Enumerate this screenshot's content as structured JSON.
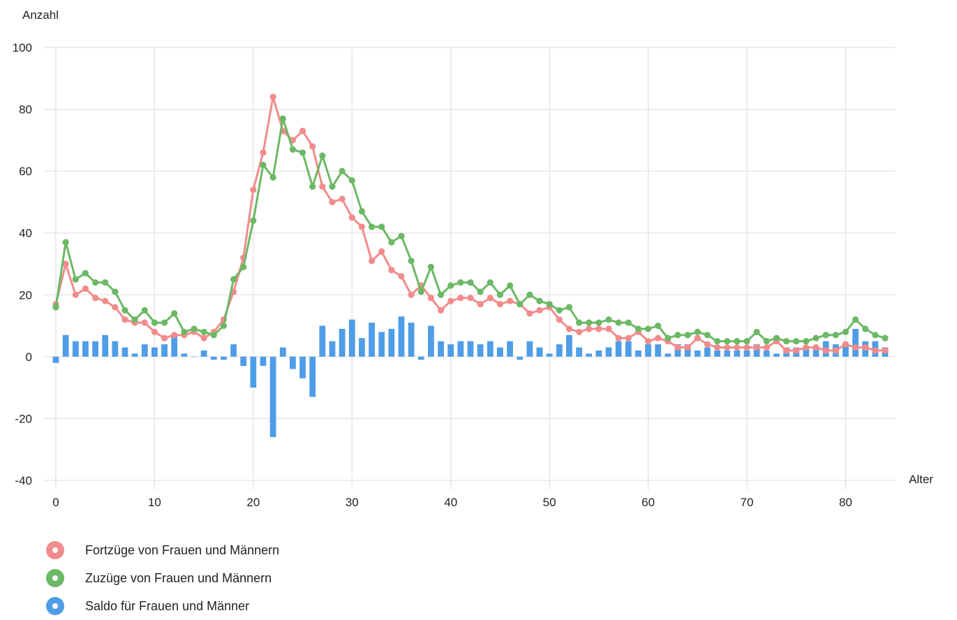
{
  "chart_data": {
    "type": "line",
    "ylabel": "Anzahl",
    "xlabel": "Alter",
    "xlim": [
      0,
      84
    ],
    "ylim": [
      -40,
      100
    ],
    "x_ticks": [
      0,
      10,
      20,
      30,
      40,
      50,
      60,
      70,
      80
    ],
    "y_ticks": [
      -40,
      -20,
      0,
      20,
      40,
      60,
      80,
      100
    ],
    "grid": true,
    "legend_position": "bottom-left",
    "x": [
      0,
      1,
      2,
      3,
      4,
      5,
      6,
      7,
      8,
      9,
      10,
      11,
      12,
      13,
      14,
      15,
      16,
      17,
      18,
      19,
      20,
      21,
      22,
      23,
      24,
      25,
      26,
      27,
      28,
      29,
      30,
      31,
      32,
      33,
      34,
      35,
      36,
      37,
      38,
      39,
      40,
      41,
      42,
      43,
      44,
      45,
      46,
      47,
      48,
      49,
      50,
      51,
      52,
      53,
      54,
      55,
      56,
      57,
      58,
      59,
      60,
      61,
      62,
      63,
      64,
      65,
      66,
      67,
      68,
      69,
      70,
      71,
      72,
      73,
      74,
      75,
      76,
      77,
      78,
      79,
      80,
      81,
      82,
      83,
      84
    ],
    "series": [
      {
        "name": "Fortzüge von Frauen und Männern",
        "type": "line",
        "color": "#f28b8b",
        "values": [
          17,
          30,
          20,
          22,
          19,
          18,
          16,
          12,
          11,
          11,
          8,
          6,
          7,
          7,
          8,
          6,
          8,
          12,
          21,
          32,
          54,
          66,
          84,
          73,
          70,
          73,
          68,
          55,
          50,
          51,
          45,
          42,
          31,
          34,
          28,
          26,
          20,
          23,
          19,
          15,
          18,
          19,
          19,
          17,
          19,
          17,
          18,
          17,
          14,
          15,
          16,
          12,
          9,
          8,
          9,
          9,
          9,
          6,
          6,
          8,
          5,
          6,
          5,
          3,
          3,
          6,
          4,
          3,
          3,
          3,
          3,
          3,
          3,
          5,
          2,
          2,
          3,
          3,
          2,
          2,
          4,
          3,
          3,
          2,
          2
        ]
      },
      {
        "name": "Zuzüge von Frauen und Männern",
        "type": "line",
        "color": "#6bb865",
        "values": [
          16,
          37,
          25,
          27,
          24,
          24,
          21,
          15,
          12,
          15,
          11,
          11,
          14,
          8,
          9,
          8,
          7,
          10,
          25,
          29,
          44,
          62,
          58,
          77,
          67,
          66,
          55,
          65,
          55,
          60,
          57,
          47,
          42,
          42,
          37,
          39,
          31,
          21,
          29,
          20,
          23,
          24,
          24,
          21,
          24,
          20,
          23,
          17,
          20,
          18,
          17,
          15,
          16,
          11,
          11,
          11,
          12,
          11,
          11,
          9,
          9,
          10,
          6,
          7,
          7,
          8,
          7,
          5,
          5,
          5,
          5,
          8,
          5,
          6,
          5,
          5,
          5,
          6,
          7,
          7,
          8,
          12,
          9,
          7,
          6
        ]
      },
      {
        "name": "Saldo für Frauen und Männer",
        "type": "bar",
        "color": "#4e9de6",
        "values": [
          -2,
          7,
          5,
          5,
          5,
          7,
          5,
          3,
          1,
          4,
          3,
          4,
          7,
          1,
          0,
          2,
          -1,
          -1,
          4,
          -3,
          -10,
          -3,
          -26,
          3,
          -4,
          -7,
          -13,
          10,
          5,
          9,
          12,
          6,
          11,
          8,
          9,
          13,
          11,
          -1,
          10,
          5,
          4,
          5,
          5,
          4,
          5,
          3,
          5,
          -1,
          5,
          3,
          1,
          4,
          7,
          3,
          1,
          2,
          3,
          5,
          5,
          2,
          4,
          4,
          1,
          4,
          4,
          2,
          3,
          2,
          2,
          2,
          2,
          4,
          2,
          1,
          3,
          3,
          3,
          3,
          5,
          4,
          4,
          9,
          5,
          5,
          3
        ]
      }
    ]
  }
}
